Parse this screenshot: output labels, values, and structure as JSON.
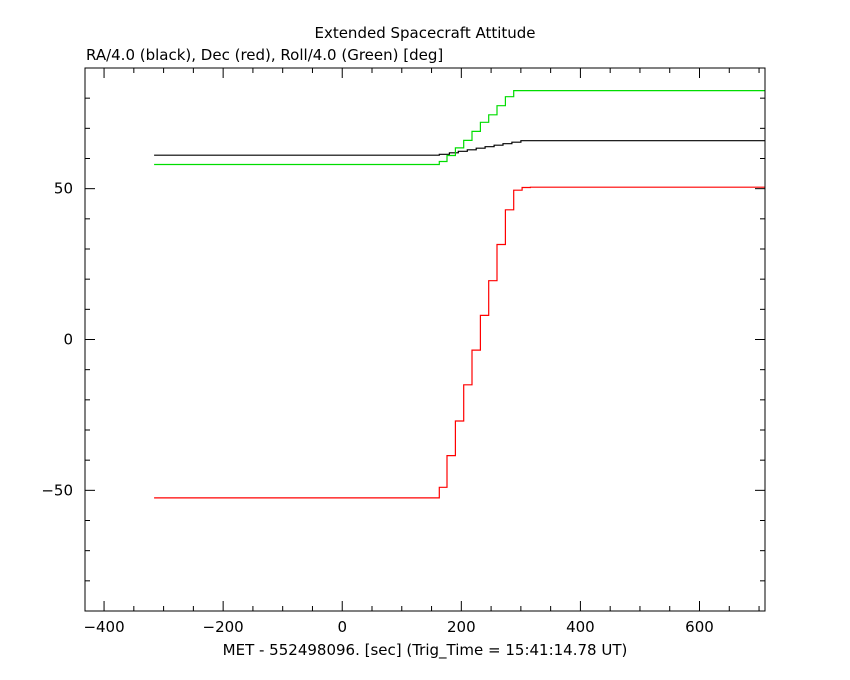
{
  "chart_data": {
    "type": "line",
    "title": "Extended Spacecraft Attitude",
    "ylabel": "RA/4.0 (black), Dec (red), Roll/4.0 (Green) [deg]",
    "xlabel": "MET - 552498096. [sec] (Trig_Time = 15:41:14.78 UT)",
    "xlim": [
      -432,
      710
    ],
    "ylim": [
      -90,
      90
    ],
    "x_ticks": [
      -400,
      -200,
      0,
      200,
      400,
      600
    ],
    "x_tick_labels": [
      "−400",
      "−200",
      "0",
      "200",
      "400",
      "600"
    ],
    "y_ticks": [
      -50,
      0,
      50
    ],
    "y_tick_labels": [
      "−50",
      "0",
      "50"
    ],
    "grid": false,
    "series": [
      {
        "color": "#000000",
        "x": [
          -316,
          163,
          180,
          195,
          210,
          225,
          240,
          255,
          270,
          285,
          300,
          710
        ],
        "y": [
          61.1,
          61.4,
          61.9,
          62.4,
          62.9,
          63.4,
          63.9,
          64.4,
          64.9,
          65.4,
          65.9,
          65.9
        ]
      },
      {
        "color": "#ff0000",
        "x": [
          -316,
          163,
          176,
          190,
          204,
          218,
          232,
          246,
          260,
          274,
          288,
          302,
          316,
          710
        ],
        "y": [
          -52.5,
          -49,
          -38.5,
          -27,
          -15,
          -3.5,
          8,
          19.5,
          31.5,
          43,
          49.5,
          50.4,
          50.5,
          50.5
        ]
      },
      {
        "color": "#00dd00",
        "x": [
          -316,
          163,
          176,
          190,
          204,
          218,
          232,
          246,
          260,
          274,
          288,
          302,
          710
        ],
        "y": [
          58,
          59,
          61,
          63.5,
          66,
          69,
          72,
          74.5,
          77.5,
          80.5,
          82.5,
          82.5,
          82.5
        ]
      }
    ]
  }
}
